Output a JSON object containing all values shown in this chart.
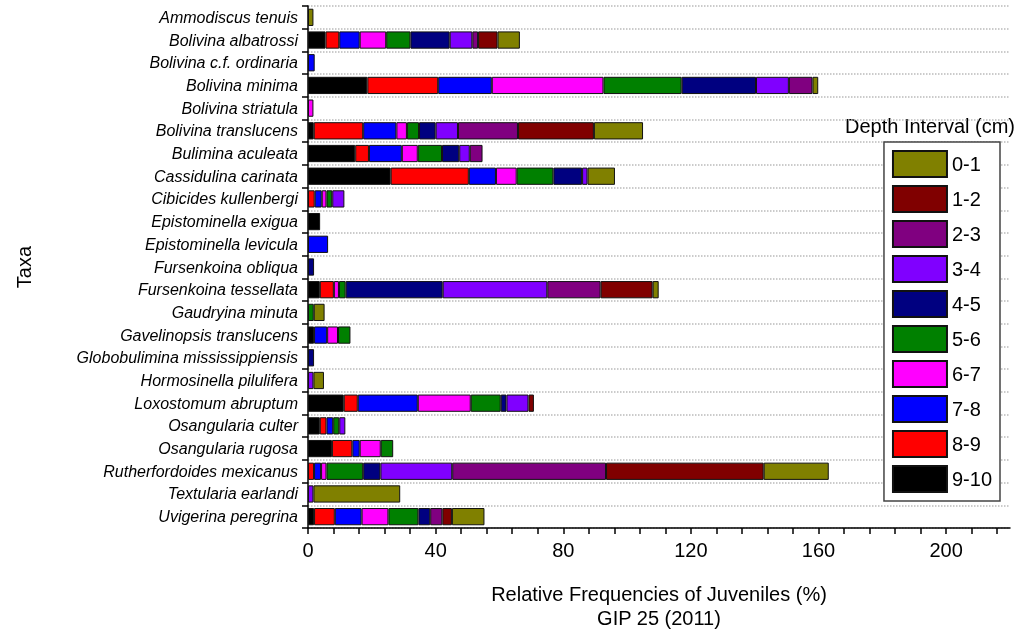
{
  "chart_data": {
    "type": "bar",
    "orientation": "horizontal",
    "stacked": true,
    "xlabel": "Relative Frequencies of Juveniles (%)",
    "ylabel": "Taxa",
    "legend_title": "Depth Interval (cm)",
    "annotations": [
      "GIP 25 (2011)"
    ],
    "categories": [
      "Ammodiscus tenuis",
      "Bolivina albatrossi",
      "Bolivina c.f. ordinaria",
      "Bolivina minima",
      "Bolivina striatula",
      "Bolivina translucens",
      "Bulimina aculeata",
      "Cassidulina carinata",
      "Cibicides kullenbergi",
      "Epistominella exigua",
      "Epistominella levicula",
      "Fursenkoina obliqua",
      "Fursenkoina tessellata",
      "Gaudryina minuta",
      "Gavelinopsis translucens",
      "Globobulimina mississippiensis",
      "Hormosinella pilulifera",
      "Loxostomum abruptum",
      "Osangularia culter",
      "Osangularia rugosa",
      "Rutherfordoides mexicanus",
      "Textularia earlandi",
      "Uvigerina peregrina"
    ],
    "series": [
      {
        "name": "9-10",
        "color": "#000000",
        "values": [
          null,
          5.5,
          null,
          18.6,
          null,
          1.8,
          14.8,
          25.9,
          null,
          3.8,
          null,
          null,
          3.7,
          null,
          1.9,
          null,
          null,
          11.2,
          3.7,
          7.5,
          null,
          null,
          1.9
        ]
      },
      {
        "name": "8-9",
        "color": "#ff0000",
        "values": [
          null,
          4.3,
          null,
          22.2,
          null,
          15.5,
          4.3,
          24.5,
          2.1,
          null,
          null,
          null,
          4.4,
          null,
          null,
          null,
          null,
          4.4,
          2.1,
          6.4,
          1.9,
          null,
          6.5
        ]
      },
      {
        "name": "7-8",
        "color": "#0000ff",
        "values": [
          null,
          6.4,
          2.1,
          16.8,
          null,
          10.4,
          10.3,
          8.5,
          2.2,
          null,
          6.3,
          null,
          null,
          null,
          4.1,
          null,
          null,
          18.8,
          2.1,
          2.3,
          2.2,
          null,
          8.4
        ]
      },
      {
        "name": "6-7",
        "color": "#ff00ff",
        "values": [
          null,
          8.3,
          null,
          35.0,
          1.7,
          3.3,
          5.0,
          6.5,
          1.5,
          null,
          null,
          null,
          1.6,
          null,
          3.4,
          null,
          null,
          16.6,
          null,
          6.6,
          1.7,
          null,
          8.4
        ]
      },
      {
        "name": "5-6",
        "color": "#008000",
        "values": [
          null,
          7.6,
          null,
          24.5,
          null,
          3.8,
          7.6,
          11.5,
          1.8,
          null,
          null,
          null,
          2.1,
          1.8,
          3.9,
          null,
          null,
          9.4,
          1.9,
          3.9,
          11.5,
          null,
          9.4
        ]
      },
      {
        "name": "4-5",
        "color": "#000080",
        "values": [
          null,
          12.3,
          null,
          23.3,
          null,
          5.2,
          5.4,
          9.0,
          null,
          null,
          null,
          1.9,
          30.4,
          null,
          null,
          1.9,
          null,
          1.8,
          null,
          null,
          5.4,
          null,
          3.7
        ]
      },
      {
        "name": "3-4",
        "color": "#8000ff",
        "values": [
          null,
          7.1,
          null,
          10.3,
          null,
          7.0,
          3.3,
          1.7,
          3.8,
          null,
          null,
          null,
          32.8,
          null,
          null,
          null,
          1.7,
          6.9,
          1.9,
          null,
          22.5,
          1.7,
          null
        ]
      },
      {
        "name": "2-3",
        "color": "#800080",
        "values": [
          null,
          1.8,
          null,
          7.4,
          null,
          18.8,
          4.0,
          null,
          null,
          null,
          null,
          null,
          16.7,
          null,
          null,
          null,
          null,
          null,
          null,
          null,
          48.2,
          null,
          3.8
        ]
      },
      {
        "name": "1-2",
        "color": "#800000",
        "values": [
          null,
          6.1,
          null,
          null,
          null,
          23.8,
          null,
          null,
          null,
          null,
          null,
          null,
          16.3,
          null,
          null,
          null,
          null,
          1.7,
          null,
          null,
          49.4,
          null,
          3.0
        ]
      },
      {
        "name": "0-1",
        "color": "#808000",
        "values": [
          1.7,
          7.0,
          null,
          1.8,
          null,
          15.4,
          null,
          8.6,
          null,
          null,
          null,
          null,
          1.9,
          3.4,
          null,
          null,
          3.3,
          null,
          null,
          null,
          20.4,
          27.2,
          10.2
        ]
      }
    ],
    "xlim": [
      0,
      220
    ],
    "xticks": [
      0,
      {
        "value": 8,
        "label": null
      },
      {
        "value": 16,
        "label": null
      },
      {
        "value": 24,
        "label": null
      },
      {
        "value": 32,
        "label": null
      },
      40,
      {
        "value": 48,
        "label": null
      },
      {
        "value": 56,
        "label": null
      },
      {
        "value": 64,
        "label": null
      },
      {
        "value": 72,
        "label": null
      },
      80,
      {
        "value": 88,
        "label": null
      },
      {
        "value": 96,
        "label": null
      },
      {
        "value": 104,
        "label": null
      },
      {
        "value": 112,
        "label": null
      },
      120,
      {
        "value": 128,
        "label": null
      },
      {
        "value": 136,
        "label": null
      },
      {
        "value": 144,
        "label": null
      },
      {
        "value": 152,
        "label": null
      },
      160,
      {
        "value": 168,
        "label": null
      },
      {
        "value": 176,
        "label": null
      },
      {
        "value": 184,
        "label": null
      },
      {
        "value": 192,
        "label": null
      },
      200,
      {
        "value": 208,
        "label": null
      },
      {
        "value": 216,
        "label": null
      }
    ],
    "grid": "y",
    "legend": "right"
  }
}
